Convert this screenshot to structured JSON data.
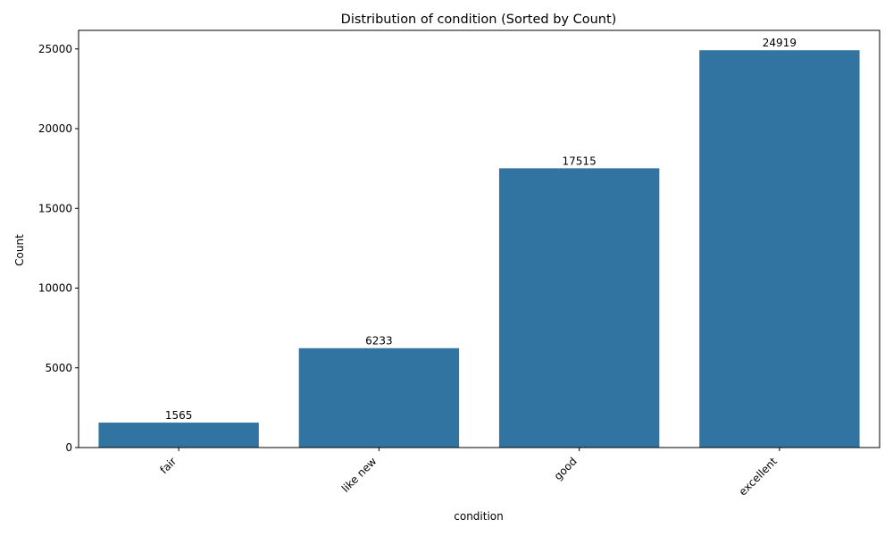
{
  "chart_data": {
    "type": "bar",
    "title": "Distribution of condition (Sorted by Count)",
    "xlabel": "condition",
    "ylabel": "Count",
    "categories": [
      "fair",
      "like new",
      "good",
      "excellent"
    ],
    "values": [
      1565,
      6233,
      17515,
      24919
    ],
    "data_labels": [
      "1565",
      "6233",
      "17515",
      "24919"
    ],
    "ylim": [
      0,
      26164
    ],
    "yticks": [
      0,
      5000,
      10000,
      15000,
      20000,
      25000
    ],
    "ytick_labels": [
      "0",
      "5000",
      "10000",
      "15000",
      "20000",
      "25000"
    ],
    "grid": false,
    "legend": "none",
    "bar_color": "#3274a1",
    "x_tick_rotation": 45
  }
}
